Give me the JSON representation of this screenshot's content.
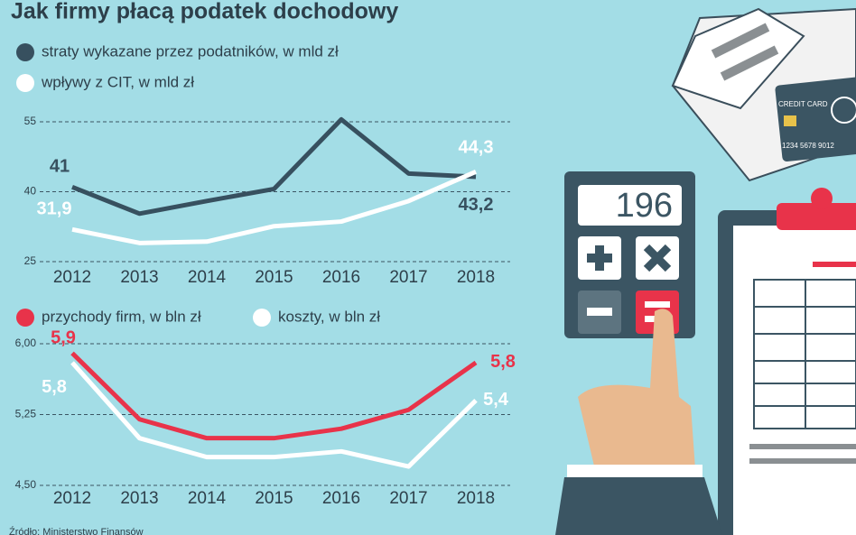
{
  "title": "Jak firmy płacą podatek dochodowy",
  "source": "Źródło: Ministerstwo Finansów",
  "illustration": {
    "display": "196",
    "card_label": "CREDIT CARD",
    "card_number": "1234 5678 9012"
  },
  "chart_data": [
    {
      "type": "line",
      "categories": [
        "2012",
        "2013",
        "2014",
        "2015",
        "2016",
        "2017",
        "2018"
      ],
      "series": [
        {
          "name": "straty wykazane przez podatników, w mld zł",
          "color": "#37505f",
          "values": [
            41,
            35.3,
            38,
            40.6,
            55.5,
            43.9,
            43.2
          ],
          "value_labels": [
            "41",
            null,
            null,
            null,
            null,
            null,
            "43,2"
          ]
        },
        {
          "name": "wpływy z CIT, w mld zł",
          "color": "#ffffff",
          "values": [
            31.9,
            29,
            29.3,
            32.6,
            33.6,
            38,
            44.3
          ],
          "value_labels": [
            "31,9",
            null,
            null,
            null,
            null,
            null,
            "44,3"
          ]
        }
      ],
      "ylim": [
        25,
        55
      ],
      "yticks": [
        25,
        40,
        55
      ],
      "grid": true
    },
    {
      "type": "line",
      "categories": [
        "2012",
        "2013",
        "2014",
        "2015",
        "2016",
        "2017",
        "2018"
      ],
      "series": [
        {
          "name": "przychody firm, w bln zł",
          "color": "#e8334a",
          "values": [
            5.9,
            5.2,
            5.0,
            5.0,
            5.1,
            5.3,
            5.8
          ],
          "value_labels": [
            "5,9",
            null,
            null,
            null,
            null,
            null,
            "5,8"
          ]
        },
        {
          "name": "koszty, w bln zł",
          "color": "#ffffff",
          "values": [
            5.8,
            5.0,
            4.8,
            4.8,
            4.86,
            4.7,
            5.4
          ],
          "value_labels": [
            "5,8",
            null,
            null,
            null,
            null,
            null,
            "5,4"
          ]
        }
      ],
      "ylim": [
        4.5,
        6.0
      ],
      "yticks": [
        {
          "value": 4.5,
          "label": "4,50"
        },
        {
          "value": 5.25,
          "label": "5,25"
        },
        {
          "value": 6.0,
          "label": "6,00"
        }
      ],
      "grid": true
    }
  ]
}
